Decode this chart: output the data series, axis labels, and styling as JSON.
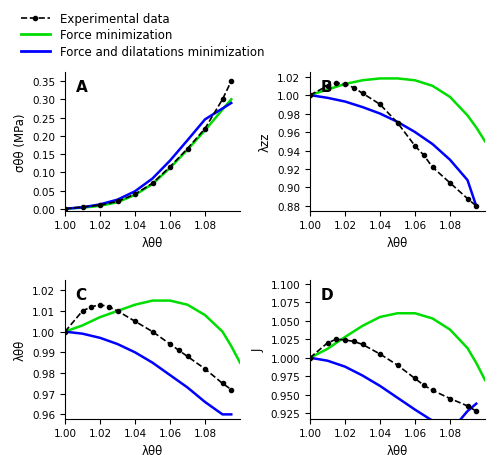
{
  "legend": {
    "exp_label": "Experimental data",
    "force_label": "Force minimization",
    "both_label": "Force and dilatations minimization",
    "exp_color": "black",
    "force_color": "#00dd00",
    "both_color": "blue"
  },
  "subplot_labels": [
    "A",
    "B",
    "C",
    "D"
  ],
  "xlim": [
    1.0,
    1.1
  ],
  "xticks": [
    1.0,
    1.02,
    1.04,
    1.06,
    1.08
  ],
  "xlabel": "λθθ",
  "panel_A": {
    "ylabel": "σθθ (MPa)",
    "ylim": [
      -0.005,
      0.375
    ],
    "yticks": [
      0.0,
      0.05,
      0.1,
      0.15,
      0.2,
      0.25,
      0.3,
      0.35
    ],
    "exp_x": [
      1.0,
      1.01,
      1.02,
      1.03,
      1.04,
      1.05,
      1.06,
      1.07,
      1.08,
      1.09,
      1.095
    ],
    "exp_y": [
      0.0,
      0.005,
      0.01,
      0.02,
      0.04,
      0.07,
      0.115,
      0.165,
      0.22,
      0.3,
      0.35
    ],
    "force_x": [
      1.0,
      1.01,
      1.02,
      1.03,
      1.04,
      1.05,
      1.06,
      1.07,
      1.08,
      1.09,
      1.095
    ],
    "force_y": [
      0.0,
      0.003,
      0.008,
      0.018,
      0.038,
      0.068,
      0.112,
      0.162,
      0.215,
      0.272,
      0.3
    ],
    "both_x": [
      1.0,
      1.01,
      1.02,
      1.03,
      1.04,
      1.05,
      1.06,
      1.07,
      1.08,
      1.09,
      1.095
    ],
    "both_y": [
      0.0,
      0.004,
      0.012,
      0.025,
      0.048,
      0.083,
      0.132,
      0.188,
      0.245,
      0.275,
      0.29
    ]
  },
  "panel_B": {
    "ylabel": "λzz",
    "ylim": [
      0.875,
      1.025
    ],
    "yticks": [
      0.88,
      0.9,
      0.92,
      0.94,
      0.96,
      0.98,
      1.0,
      1.02
    ],
    "exp_x": [
      1.0,
      1.01,
      1.015,
      1.02,
      1.025,
      1.03,
      1.04,
      1.05,
      1.06,
      1.065,
      1.07,
      1.08,
      1.09,
      1.095
    ],
    "exp_y": [
      1.0,
      1.01,
      1.013,
      1.012,
      1.008,
      1.002,
      0.99,
      0.97,
      0.945,
      0.935,
      0.922,
      0.905,
      0.888,
      0.88
    ],
    "force_x": [
      1.0,
      1.01,
      1.02,
      1.03,
      1.04,
      1.05,
      1.06,
      1.07,
      1.08,
      1.09,
      1.095,
      1.1
    ],
    "force_y": [
      1.0,
      1.006,
      1.012,
      1.016,
      1.018,
      1.018,
      1.016,
      1.01,
      0.998,
      0.978,
      0.965,
      0.95
    ],
    "both_x": [
      1.0,
      1.01,
      1.02,
      1.03,
      1.04,
      1.05,
      1.06,
      1.07,
      1.08,
      1.09,
      1.095
    ],
    "both_y": [
      1.0,
      0.997,
      0.993,
      0.987,
      0.98,
      0.971,
      0.96,
      0.947,
      0.93,
      0.908,
      0.88
    ]
  },
  "panel_C": {
    "ylabel": "λθθ",
    "ylim": [
      0.958,
      1.025
    ],
    "yticks": [
      0.96,
      0.97,
      0.98,
      0.99,
      1.0,
      1.01,
      1.02
    ],
    "exp_x": [
      1.0,
      1.01,
      1.015,
      1.02,
      1.025,
      1.03,
      1.04,
      1.05,
      1.06,
      1.065,
      1.07,
      1.08,
      1.09,
      1.095
    ],
    "exp_y": [
      1.0,
      1.01,
      1.012,
      1.013,
      1.012,
      1.01,
      1.005,
      1.0,
      0.994,
      0.991,
      0.988,
      0.982,
      0.975,
      0.972
    ],
    "force_x": [
      1.0,
      1.01,
      1.02,
      1.03,
      1.04,
      1.05,
      1.06,
      1.07,
      1.08,
      1.09,
      1.095,
      1.1
    ],
    "force_y": [
      1.0,
      1.003,
      1.007,
      1.01,
      1.013,
      1.015,
      1.015,
      1.013,
      1.008,
      1.0,
      0.993,
      0.985
    ],
    "both_x": [
      1.0,
      1.01,
      1.02,
      1.03,
      1.04,
      1.05,
      1.06,
      1.07,
      1.08,
      1.09,
      1.095
    ],
    "both_y": [
      1.0,
      0.999,
      0.997,
      0.994,
      0.99,
      0.985,
      0.979,
      0.973,
      0.966,
      0.96,
      0.96
    ]
  },
  "panel_D": {
    "ylabel": "J",
    "ylim": [
      0.918,
      1.105
    ],
    "yticks": [
      0.925,
      0.95,
      0.975,
      1.0,
      1.025,
      1.05,
      1.075,
      1.1
    ],
    "exp_x": [
      1.0,
      1.01,
      1.015,
      1.02,
      1.025,
      1.03,
      1.04,
      1.05,
      1.06,
      1.065,
      1.07,
      1.08,
      1.09,
      1.095
    ],
    "exp_y": [
      1.0,
      1.02,
      1.025,
      1.024,
      1.022,
      1.018,
      1.005,
      0.99,
      0.972,
      0.963,
      0.956,
      0.945,
      0.935,
      0.928
    ],
    "force_x": [
      1.0,
      1.01,
      1.02,
      1.03,
      1.04,
      1.05,
      1.06,
      1.07,
      1.08,
      1.09,
      1.095,
      1.1
    ],
    "force_y": [
      1.0,
      1.012,
      1.028,
      1.043,
      1.055,
      1.06,
      1.06,
      1.053,
      1.038,
      1.013,
      0.993,
      0.97
    ],
    "both_x": [
      1.0,
      1.01,
      1.02,
      1.03,
      1.04,
      1.05,
      1.06,
      1.07,
      1.08,
      1.09,
      1.095
    ],
    "both_y": [
      1.0,
      0.996,
      0.988,
      0.976,
      0.962,
      0.946,
      0.93,
      0.915,
      0.9,
      0.928,
      0.938
    ]
  }
}
